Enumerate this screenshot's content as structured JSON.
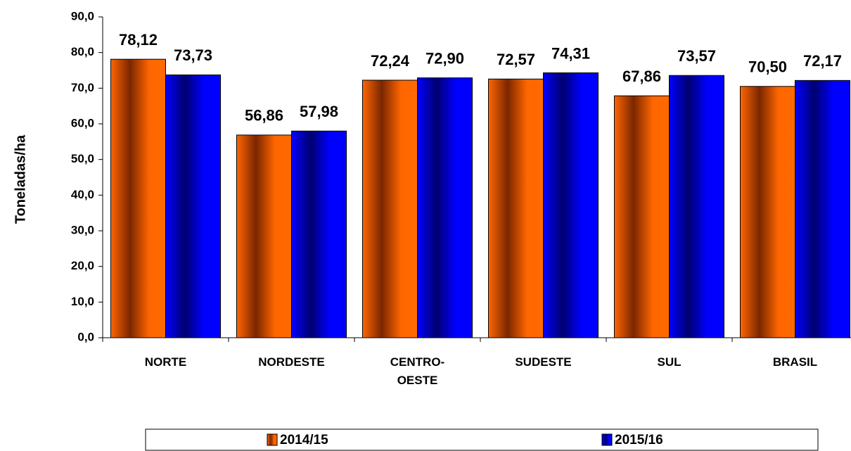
{
  "chart_data": {
    "type": "bar",
    "y_label": "Toneladas/ha",
    "categories": [
      "NORTE",
      "NORDESTE",
      "CENTRO-OESTE",
      "SUDESTE",
      "SUL",
      "BRASIL"
    ],
    "series": [
      {
        "name": "2014/15",
        "color": "#ff6600",
        "values": [
          78.12,
          56.86,
          72.24,
          72.57,
          67.86,
          70.5
        ],
        "value_labels": [
          "78,12",
          "56,86",
          "72,24",
          "72,57",
          "67,86",
          "70,50"
        ]
      },
      {
        "name": "2015/16",
        "color": "#0000ff",
        "values": [
          73.73,
          57.98,
          72.9,
          74.31,
          73.57,
          72.17
        ],
        "value_labels": [
          "73,73",
          "57,98",
          "72,90",
          "74,31",
          "73,57",
          "72,17"
        ]
      }
    ],
    "ylim": [
      0,
      90
    ],
    "yticks": [
      {
        "value": 0,
        "label": "0,0"
      },
      {
        "value": 10,
        "label": "10,0"
      },
      {
        "value": 20,
        "label": "20,0"
      },
      {
        "value": 30,
        "label": "30,0"
      },
      {
        "value": 40,
        "label": "40,0"
      },
      {
        "value": 50,
        "label": "50,0"
      },
      {
        "value": 60,
        "label": "60,0"
      },
      {
        "value": 70,
        "label": "70,0"
      },
      {
        "value": 80,
        "label": "80,0"
      },
      {
        "value": 90,
        "label": "90,0"
      }
    ],
    "legend": "bottom"
  }
}
